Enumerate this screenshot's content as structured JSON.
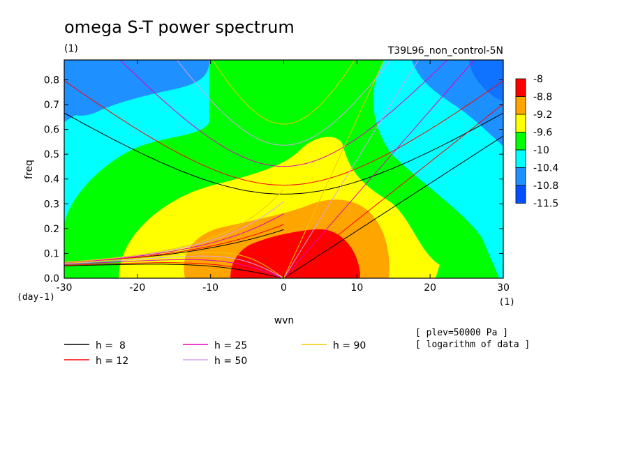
{
  "chart_data": {
    "type": "heatmap",
    "title": "omega S-T power spectrum",
    "subtitle_left": "(1)",
    "subtitle_right": "T39L96_non_control-5N",
    "xlabel": "wvn",
    "ylabel": "freq",
    "x_unit": "(1)",
    "y_unit": "(day-1)",
    "xlim": [
      -30,
      30
    ],
    "ylim": [
      0,
      0.88
    ],
    "x_ticks": [
      "-30",
      "-20",
      "-10",
      "0",
      "10",
      "20",
      "30"
    ],
    "y_ticks": [
      "0.0",
      "0.1",
      "0.2",
      "0.3",
      "0.4",
      "0.5",
      "0.6",
      "0.7",
      "0.8"
    ],
    "colorbar": {
      "levels": [
        "-8",
        "-8.8",
        "-9.2",
        "-9.6",
        "-10",
        "-10.4",
        "-10.8",
        "-11.5"
      ],
      "colors": [
        "#ff0000",
        "#ffa500",
        "#ffff00",
        "#00ff00",
        "#00ffff",
        "#1e90ff",
        "#0050ff"
      ]
    },
    "dispersion_curves": [
      {
        "name": "h =  8",
        "h": 8,
        "color": "#000000"
      },
      {
        "name": "h = 12",
        "h": 12,
        "color": "#ff0000"
      },
      {
        "name": "h = 25",
        "h": 25,
        "color": "#e000c0"
      },
      {
        "name": "h = 50",
        "h": 50,
        "color": "#d8a0f0"
      },
      {
        "name": "h = 90",
        "h": 90,
        "color": "#f0c800"
      }
    ],
    "annotations": [
      "[ plev=50000 Pa ]",
      "[ logarithm of data ]"
    ]
  }
}
